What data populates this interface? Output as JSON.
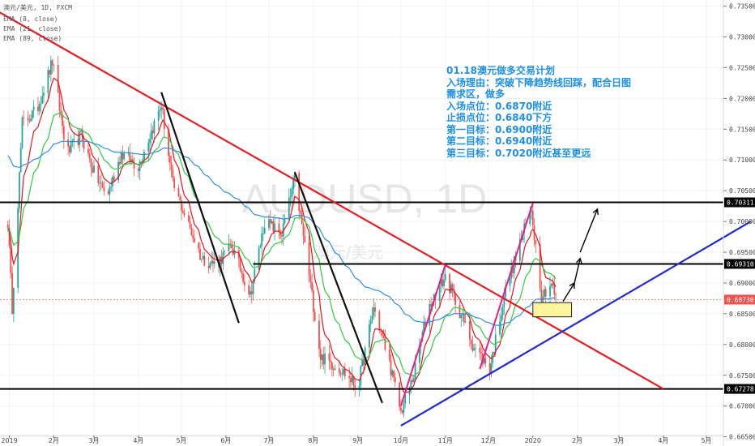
{
  "header": {
    "symbol_line": "澳元/美元, 1D, FXCM",
    "ema_lines": [
      "EMA (8, close)",
      "EMA (21, close)",
      "EMA (89, close)"
    ]
  },
  "watermark": {
    "main": "AUDUSD, 1D",
    "sub": "澳元/美元"
  },
  "plan": {
    "lines": [
      "01.18澳元做多交易计划",
      "入场理由：突破下降趋势线回踩，配合日图",
      "需求区，做多",
      "入场点位：0.6870附近",
      "止损点位：0.6840下方",
      "第一目标：0.6900附近",
      "第二目标：0.6940附近",
      "第三目标：0.7020附近甚至更远"
    ]
  },
  "colors": {
    "up": "#26a69a",
    "down": "#ef5350",
    "ema8": "#e8141c",
    "ema21": "#2ecc40",
    "ema89": "#2f8fe0",
    "trend_red": "#e51c23",
    "trend_blue": "#1f2bd1",
    "channel_pink": "#e91e8c",
    "level": "#000000",
    "zone": "#fff59d",
    "price_label": "#ef5350",
    "plan_text": "#1e90e8"
  },
  "chart_data": {
    "type": "candlestick",
    "instrument": "AUDUSD",
    "timeframe": "1D",
    "ylim": [
      0.6635,
      0.736
    ],
    "y_ticks": [
      "0.73500",
      "0.73000",
      "0.72500",
      "0.72000",
      "0.71500",
      "0.71000",
      "0.70500",
      "0.70000",
      "0.69500",
      "0.69000",
      "0.68500",
      "0.68000",
      "0.67500",
      "0.67000",
      "0.66500"
    ],
    "x_ticks": [
      "2019",
      "2月",
      "3月",
      "4月",
      "5月",
      "6月",
      "7月",
      "8月",
      "9月",
      "10月",
      "11月",
      "12月",
      "2020",
      "2月",
      "3月",
      "4月",
      "5月"
    ],
    "current_price": "0.68730",
    "levels": [
      {
        "label": "0.70311",
        "value": 0.70311
      },
      {
        "label": "0.69310",
        "value": 0.6931
      },
      {
        "label": "0.67278",
        "value": 0.67278
      }
    ],
    "demand_zone": [
      0.6845,
      0.6868
    ],
    "trendlines": [
      {
        "name": "descending-trendline",
        "from": [
          "2018-12-10",
          0.736
        ],
        "to": [
          "2020-04-01",
          0.67278
        ]
      },
      {
        "name": "ascending-trendline",
        "from": [
          "2019-10-01",
          0.6668
        ],
        "to": [
          "2020-06-01",
          0.7
        ]
      }
    ],
    "price_path": [
      [
        "2018-12-30",
        0.7045
      ],
      [
        "2019-01-03",
        0.686
      ],
      [
        "2019-01-10",
        0.716
      ],
      [
        "2019-01-20",
        0.718
      ],
      [
        "2019-01-31",
        0.726
      ],
      [
        "2019-02-10",
        0.711
      ],
      [
        "2019-02-20",
        0.714
      ],
      [
        "2019-03-01",
        0.708
      ],
      [
        "2019-03-10",
        0.704
      ],
      [
        "2019-03-20",
        0.711
      ],
      [
        "2019-04-01",
        0.709
      ],
      [
        "2019-04-17",
        0.719
      ],
      [
        "2019-04-25",
        0.706
      ],
      [
        "2019-05-05",
        0.7
      ],
      [
        "2019-05-15",
        0.694
      ],
      [
        "2019-05-25",
        0.693
      ],
      [
        "2019-06-05",
        0.696
      ],
      [
        "2019-06-18",
        0.688
      ],
      [
        "2019-06-28",
        0.7
      ],
      [
        "2019-07-10",
        0.698
      ],
      [
        "2019-07-19",
        0.707
      ],
      [
        "2019-07-28",
        0.693
      ],
      [
        "2019-08-06",
        0.678
      ],
      [
        "2019-08-20",
        0.676
      ],
      [
        "2019-09-01",
        0.673
      ],
      [
        "2019-09-12",
        0.686
      ],
      [
        "2019-09-22",
        0.678
      ],
      [
        "2019-10-01",
        0.669
      ],
      [
        "2019-10-10",
        0.675
      ],
      [
        "2019-10-20",
        0.686
      ],
      [
        "2019-11-01",
        0.691
      ],
      [
        "2019-11-10",
        0.686
      ],
      [
        "2019-11-20",
        0.68
      ],
      [
        "2019-12-02",
        0.676
      ],
      [
        "2019-12-12",
        0.688
      ],
      [
        "2019-12-25",
        0.698
      ],
      [
        "2019-12-31",
        0.702
      ],
      [
        "2020-01-07",
        0.688
      ],
      [
        "2020-01-14",
        0.69
      ],
      [
        "2020-01-17",
        0.6873
      ]
    ],
    "emas": [
      {
        "name": "EMA (8, close)",
        "period": 8
      },
      {
        "name": "EMA (21, close)",
        "period": 21
      },
      {
        "name": "EMA (89, close)",
        "period": 89
      }
    ]
  }
}
